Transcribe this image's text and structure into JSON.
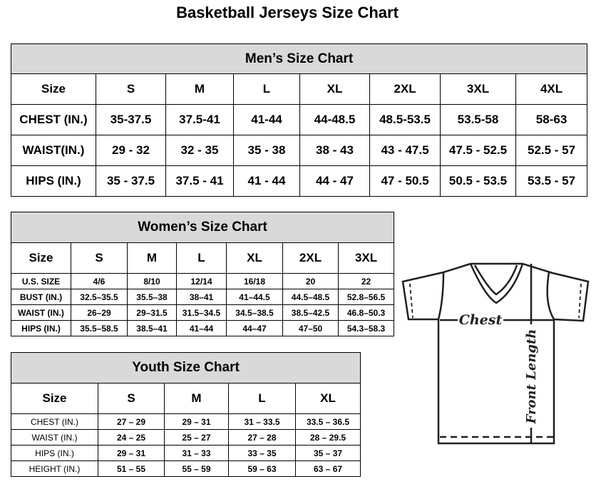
{
  "title": "Basketball Jerseys Size Chart",
  "men": {
    "title": "Men’s Size Chart",
    "header": [
      "Size",
      "S",
      "M",
      "L",
      "XL",
      "2XL",
      "3XL",
      "4XL"
    ],
    "rows": [
      [
        "CHEST (IN.)",
        "35-37.5",
        "37.5-41",
        "41-44",
        "44-48.5",
        "48.5-53.5",
        "53.5-58",
        "58-63"
      ],
      [
        "WAIST(IN.)",
        "29 - 32",
        "32 - 35",
        "35 - 38",
        "38 - 43",
        "43 - 47.5",
        "47.5 - 52.5",
        "52.5 - 57"
      ],
      [
        "HIPS (IN.)",
        "35 - 37.5",
        "37.5 - 41",
        "41 - 44",
        "44 - 47",
        "47 - 50.5",
        "50.5 - 53.5",
        "53.5 - 57"
      ]
    ]
  },
  "women": {
    "title": "Women’s Size Chart",
    "header": [
      "Size",
      "S",
      "M",
      "L",
      "XL",
      "2XL",
      "3XL"
    ],
    "rows": [
      [
        "U.S.  SIZE",
        "4/6",
        "8/10",
        "12/14",
        "16/18",
        "20",
        "22"
      ],
      [
        "BUST  (IN.)",
        "32.5–35.5",
        "35.5–38",
        "38–41",
        "41–44.5",
        "44.5–48.5",
        "52.8–56.5"
      ],
      [
        "WAIST  (IN.)",
        "26–29",
        "29–31.5",
        "31.5–34.5",
        "34.5–38.5",
        "38.5–42.5",
        "46.8–50.3"
      ],
      [
        "HIPS  (IN.)",
        "35.5–58.5",
        "38.5–41",
        "41–44",
        "44–47",
        "47–50",
        "54.3–58.3"
      ]
    ]
  },
  "youth": {
    "title": "Youth Size Chart",
    "header": [
      "Size",
      "S",
      "M",
      "L",
      "XL"
    ],
    "rows": [
      [
        "CHEST  (IN.)",
        "27  –  29",
        "29  –  31",
        "31  –  33.5",
        "33.5  –  36.5"
      ],
      [
        "WAIST  (IN.)",
        "24  –  25",
        "25  –  27",
        "27  –  28",
        "28  –  29.5"
      ],
      [
        "HIPS  (IN.)",
        "29  –  31",
        "31  –  33",
        "33  –  35",
        "35  –  37"
      ],
      [
        "HEIGHT  (IN.)",
        "51  –  55",
        "55  –  59",
        "59  –  63",
        "63  –  67"
      ]
    ]
  },
  "diagram": {
    "chest_label": "Chest",
    "length_label": "Front Length",
    "stroke": "#231f20"
  }
}
